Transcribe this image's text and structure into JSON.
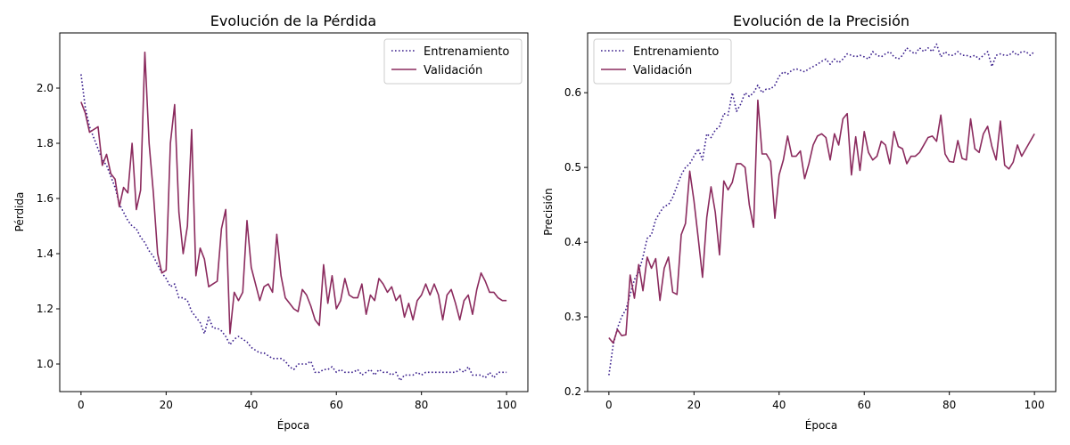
{
  "chart_data": [
    {
      "type": "line",
      "title": "Evolución de la Pérdida",
      "xlabel": "Época",
      "ylabel": "Pérdida",
      "xlim": [
        -5,
        105
      ],
      "ylim": [
        0.9,
        2.2
      ],
      "xticks": [
        0,
        20,
        40,
        60,
        80,
        100
      ],
      "yticks": [
        1.0,
        1.2,
        1.4,
        1.6,
        1.8,
        2.0
      ],
      "ytick_labels": [
        "1.0",
        "1.2",
        "1.4",
        "1.6",
        "1.8",
        "2.0"
      ],
      "grid": false,
      "legend_position": "top-right",
      "series": [
        {
          "name": "Entrenamiento",
          "color": "#3a1f8c",
          "style": "dotted",
          "x_start": 0,
          "values": [
            2.05,
            1.93,
            1.86,
            1.82,
            1.78,
            1.74,
            1.72,
            1.68,
            1.64,
            1.58,
            1.55,
            1.52,
            1.5,
            1.49,
            1.46,
            1.44,
            1.41,
            1.39,
            1.36,
            1.33,
            1.31,
            1.28,
            1.29,
            1.24,
            1.24,
            1.23,
            1.19,
            1.17,
            1.15,
            1.11,
            1.17,
            1.13,
            1.13,
            1.12,
            1.1,
            1.07,
            1.09,
            1.1,
            1.09,
            1.08,
            1.06,
            1.05,
            1.04,
            1.04,
            1.03,
            1.02,
            1.02,
            1.02,
            1.01,
            0.99,
            0.98,
            1.0,
            1.0,
            1.0,
            1.01,
            0.97,
            0.97,
            0.98,
            0.98,
            0.99,
            0.97,
            0.98,
            0.97,
            0.97,
            0.97,
            0.98,
            0.96,
            0.97,
            0.98,
            0.96,
            0.98,
            0.97,
            0.97,
            0.96,
            0.97,
            0.94,
            0.96,
            0.96,
            0.96,
            0.97,
            0.96,
            0.97,
            0.97,
            0.97,
            0.97,
            0.97,
            0.97,
            0.97,
            0.97,
            0.98,
            0.97,
            0.99,
            0.96,
            0.96,
            0.96,
            0.95,
            0.97,
            0.95,
            0.97,
            0.97,
            0.97
          ]
        },
        {
          "name": "Validación",
          "color": "#8b2b5e",
          "style": "solid",
          "x_start": 0,
          "values": [
            1.95,
            1.91,
            1.84,
            1.85,
            1.86,
            1.72,
            1.76,
            1.69,
            1.67,
            1.57,
            1.64,
            1.62,
            1.8,
            1.56,
            1.63,
            2.13,
            1.8,
            1.62,
            1.4,
            1.33,
            1.34,
            1.8,
            1.94,
            1.55,
            1.4,
            1.5,
            1.85,
            1.32,
            1.42,
            1.38,
            1.28,
            1.29,
            1.3,
            1.49,
            1.56,
            1.11,
            1.26,
            1.23,
            1.26,
            1.52,
            1.35,
            1.29,
            1.23,
            1.28,
            1.29,
            1.26,
            1.47,
            1.32,
            1.24,
            1.22,
            1.2,
            1.19,
            1.27,
            1.25,
            1.21,
            1.16,
            1.14,
            1.36,
            1.22,
            1.32,
            1.2,
            1.23,
            1.31,
            1.25,
            1.24,
            1.24,
            1.29,
            1.18,
            1.25,
            1.23,
            1.31,
            1.29,
            1.26,
            1.28,
            1.23,
            1.25,
            1.17,
            1.22,
            1.16,
            1.23,
            1.25,
            1.29,
            1.25,
            1.29,
            1.25,
            1.16,
            1.25,
            1.27,
            1.22,
            1.16,
            1.23,
            1.25,
            1.18,
            1.27,
            1.33,
            1.3,
            1.26,
            1.26,
            1.24,
            1.23,
            1.23
          ]
        }
      ]
    },
    {
      "type": "line",
      "title": "Evolución de la Precisión",
      "xlabel": "Época",
      "ylabel": "Precisión",
      "xlim": [
        -5,
        105
      ],
      "ylim": [
        0.2,
        0.68
      ],
      "xticks": [
        0,
        20,
        40,
        60,
        80,
        100
      ],
      "yticks": [
        0.2,
        0.3,
        0.4,
        0.5,
        0.6
      ],
      "ytick_labels": [
        "0.2",
        "0.3",
        "0.4",
        "0.5",
        "0.6"
      ],
      "grid": false,
      "legend_position": "top-left",
      "series": [
        {
          "name": "Entrenamiento",
          "color": "#3a1f8c",
          "style": "dotted",
          "x_start": 0,
          "values": [
            0.222,
            0.262,
            0.285,
            0.3,
            0.31,
            0.33,
            0.35,
            0.36,
            0.38,
            0.405,
            0.41,
            0.43,
            0.44,
            0.448,
            0.45,
            0.46,
            0.475,
            0.49,
            0.5,
            0.505,
            0.515,
            0.525,
            0.51,
            0.545,
            0.54,
            0.55,
            0.555,
            0.572,
            0.57,
            0.6,
            0.575,
            0.585,
            0.6,
            0.595,
            0.6,
            0.61,
            0.6,
            0.605,
            0.605,
            0.61,
            0.622,
            0.628,
            0.625,
            0.63,
            0.632,
            0.63,
            0.628,
            0.632,
            0.635,
            0.638,
            0.642,
            0.645,
            0.638,
            0.645,
            0.64,
            0.645,
            0.652,
            0.65,
            0.648,
            0.65,
            0.648,
            0.645,
            0.655,
            0.65,
            0.648,
            0.652,
            0.655,
            0.648,
            0.645,
            0.65,
            0.66,
            0.655,
            0.652,
            0.66,
            0.655,
            0.66,
            0.655,
            0.665,
            0.648,
            0.655,
            0.65,
            0.65,
            0.655,
            0.65,
            0.65,
            0.648,
            0.65,
            0.645,
            0.65,
            0.655,
            0.635,
            0.65,
            0.652,
            0.65,
            0.65,
            0.655,
            0.65,
            0.655,
            0.655,
            0.65,
            0.655
          ]
        },
        {
          "name": "Validación",
          "color": "#8b2b5e",
          "style": "solid",
          "x_start": 0,
          "values": [
            0.272,
            0.265,
            0.283,
            0.275,
            0.276,
            0.356,
            0.325,
            0.37,
            0.335,
            0.38,
            0.365,
            0.378,
            0.322,
            0.365,
            0.38,
            0.333,
            0.33,
            0.41,
            0.425,
            0.495,
            0.455,
            0.405,
            0.353,
            0.433,
            0.474,
            0.44,
            0.383,
            0.482,
            0.47,
            0.48,
            0.505,
            0.505,
            0.5,
            0.45,
            0.42,
            0.59,
            0.518,
            0.518,
            0.508,
            0.432,
            0.49,
            0.51,
            0.542,
            0.515,
            0.515,
            0.522,
            0.485,
            0.505,
            0.53,
            0.542,
            0.545,
            0.54,
            0.51,
            0.545,
            0.53,
            0.565,
            0.572,
            0.49,
            0.541,
            0.496,
            0.548,
            0.52,
            0.51,
            0.515,
            0.535,
            0.53,
            0.505,
            0.548,
            0.528,
            0.525,
            0.505,
            0.515,
            0.515,
            0.52,
            0.53,
            0.54,
            0.542,
            0.535,
            0.57,
            0.518,
            0.508,
            0.507,
            0.536,
            0.512,
            0.51,
            0.565,
            0.525,
            0.52,
            0.545,
            0.555,
            0.528,
            0.51,
            0.562,
            0.503,
            0.498,
            0.507,
            0.53,
            0.515,
            0.525,
            0.535,
            0.545
          ]
        }
      ]
    }
  ]
}
